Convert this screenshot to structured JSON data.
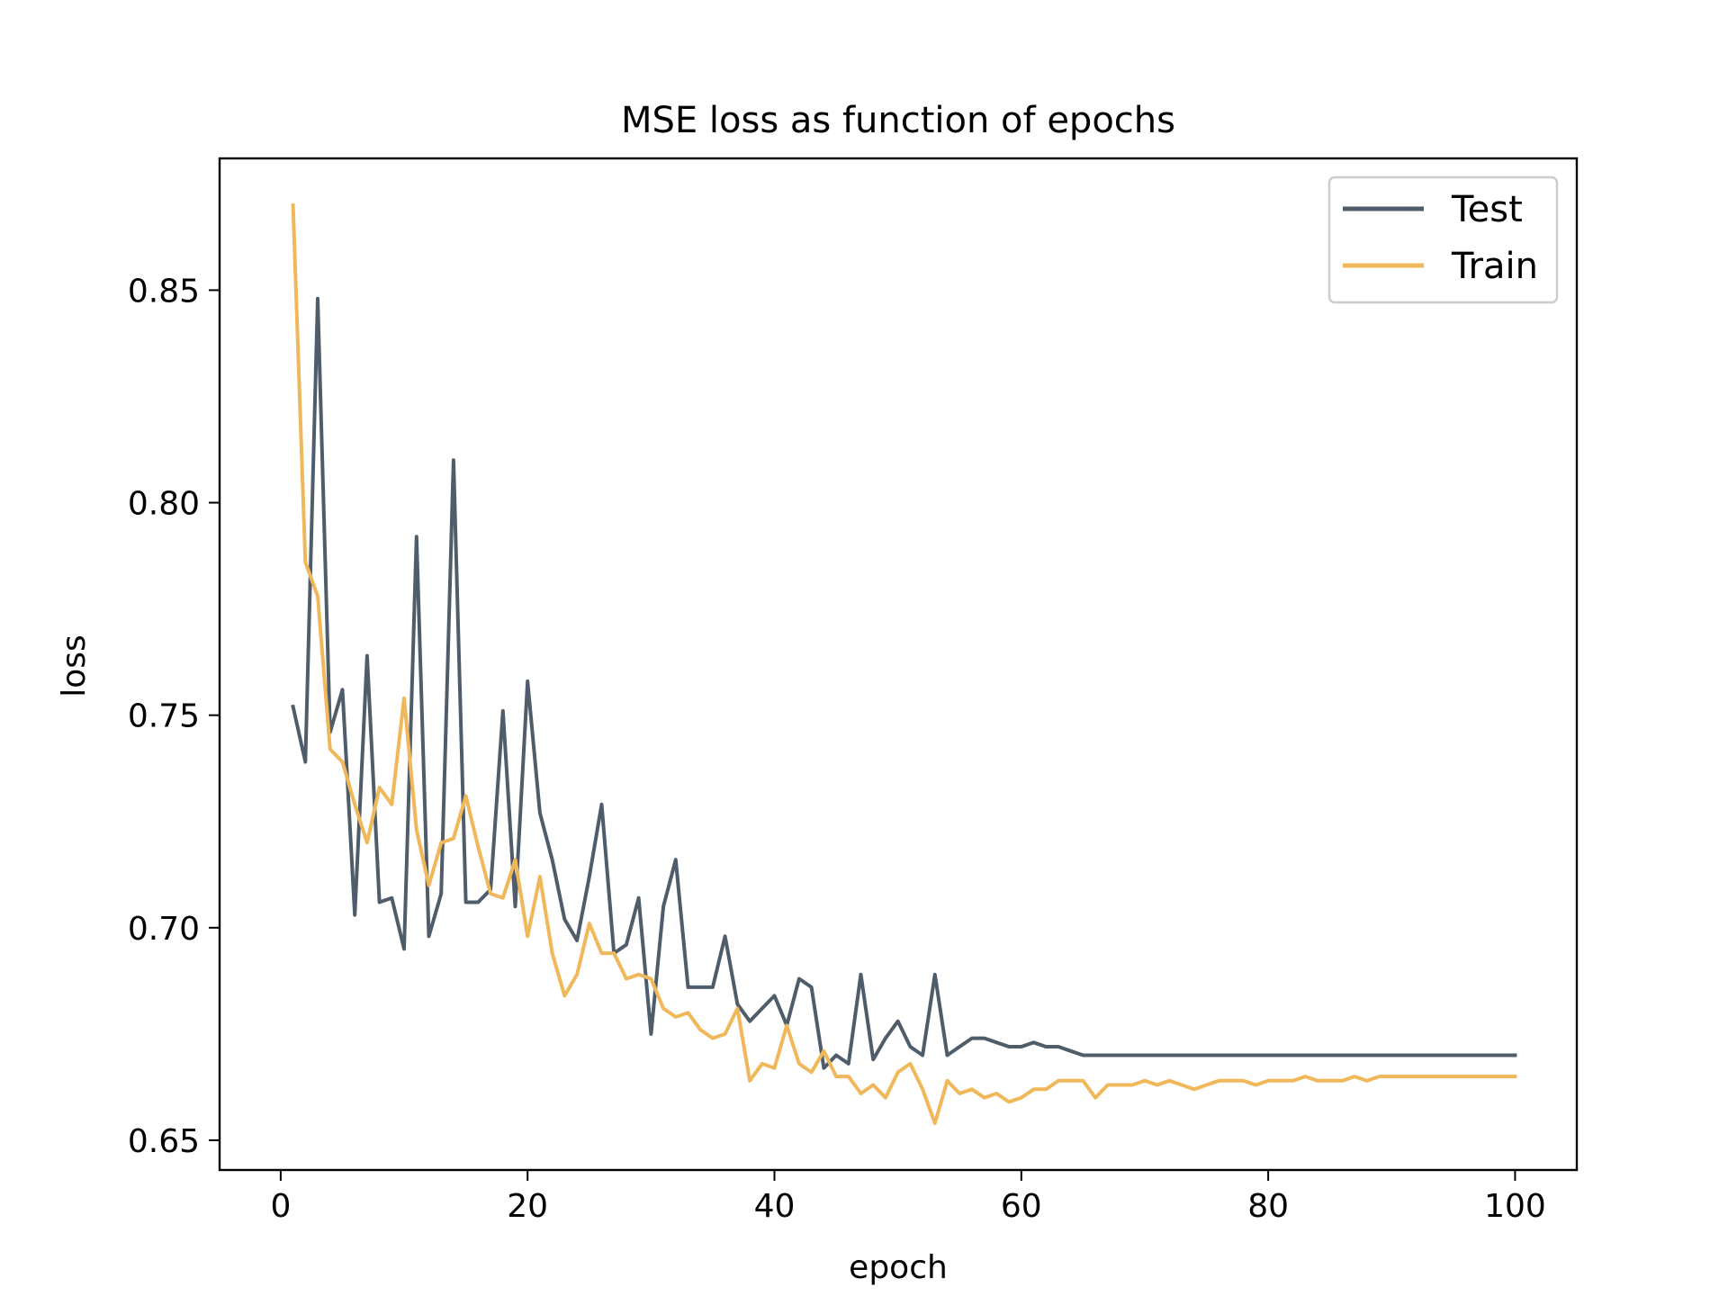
{
  "chart_data": {
    "type": "line",
    "title": "MSE loss as function of epochs",
    "xlabel": "epoch",
    "ylabel": "loss",
    "xlim": [
      -4.95,
      105
    ],
    "ylim": [
      0.643,
      0.881
    ],
    "xticks": [
      0,
      20,
      40,
      60,
      80,
      100
    ],
    "yticks": [
      0.65,
      0.7,
      0.75,
      0.8,
      0.85
    ],
    "xtick_labels": [
      "0",
      "20",
      "40",
      "60",
      "80",
      "100"
    ],
    "ytick_labels": [
      "0.65",
      "0.70",
      "0.75",
      "0.80",
      "0.85"
    ],
    "grid": false,
    "legend_position": "top-right",
    "x": [
      1,
      2,
      3,
      4,
      5,
      6,
      7,
      8,
      9,
      10,
      11,
      12,
      13,
      14,
      15,
      16,
      17,
      18,
      19,
      20,
      21,
      22,
      23,
      24,
      25,
      26,
      27,
      28,
      29,
      30,
      31,
      32,
      33,
      34,
      35,
      36,
      37,
      38,
      39,
      40,
      41,
      42,
      43,
      44,
      45,
      46,
      47,
      48,
      49,
      50,
      51,
      52,
      53,
      54,
      55,
      56,
      57,
      58,
      59,
      60,
      61,
      62,
      63,
      64,
      65,
      66,
      67,
      68,
      69,
      70,
      71,
      72,
      73,
      74,
      75,
      76,
      77,
      78,
      79,
      80,
      81,
      82,
      83,
      84,
      85,
      86,
      87,
      88,
      89,
      90,
      91,
      92,
      93,
      94,
      95,
      96,
      97,
      98,
      99,
      100
    ],
    "series": [
      {
        "name": "Test",
        "color": "#4f5d6b",
        "values": [
          0.752,
          0.739,
          0.848,
          0.746,
          0.756,
          0.703,
          0.764,
          0.706,
          0.707,
          0.695,
          0.792,
          0.698,
          0.708,
          0.81,
          0.706,
          0.706,
          0.709,
          0.751,
          0.705,
          0.758,
          0.727,
          0.716,
          0.702,
          0.697,
          0.712,
          0.729,
          0.694,
          0.696,
          0.707,
          0.675,
          0.705,
          0.716,
          0.686,
          0.686,
          0.686,
          0.698,
          0.682,
          0.678,
          0.681,
          0.684,
          0.677,
          0.688,
          0.686,
          0.667,
          0.67,
          0.668,
          0.689,
          0.669,
          0.674,
          0.678,
          0.672,
          0.67,
          0.689,
          0.67,
          0.672,
          0.674,
          0.674,
          0.673,
          0.672,
          0.672,
          0.673,
          0.672,
          0.672,
          0.671,
          0.67,
          0.67,
          0.67,
          0.67,
          0.67,
          0.67,
          0.67,
          0.67,
          0.67,
          0.67,
          0.67,
          0.67,
          0.67,
          0.67,
          0.67,
          0.67,
          0.67,
          0.67,
          0.67,
          0.67,
          0.67,
          0.67,
          0.67,
          0.67,
          0.67,
          0.67,
          0.67,
          0.67,
          0.67,
          0.67,
          0.67,
          0.67,
          0.67,
          0.67,
          0.67,
          0.67
        ]
      },
      {
        "name": "Train",
        "color": "#f0b85a",
        "values": [
          0.87,
          0.786,
          0.778,
          0.742,
          0.739,
          0.729,
          0.72,
          0.733,
          0.729,
          0.754,
          0.723,
          0.71,
          0.72,
          0.721,
          0.731,
          0.719,
          0.708,
          0.707,
          0.716,
          0.698,
          0.712,
          0.694,
          0.684,
          0.689,
          0.701,
          0.694,
          0.694,
          0.688,
          0.689,
          0.688,
          0.681,
          0.679,
          0.68,
          0.676,
          0.674,
          0.675,
          0.681,
          0.664,
          0.668,
          0.667,
          0.677,
          0.668,
          0.666,
          0.671,
          0.665,
          0.665,
          0.661,
          0.663,
          0.66,
          0.666,
          0.668,
          0.662,
          0.654,
          0.664,
          0.661,
          0.662,
          0.66,
          0.661,
          0.659,
          0.66,
          0.662,
          0.662,
          0.664,
          0.664,
          0.664,
          0.66,
          0.663,
          0.663,
          0.663,
          0.664,
          0.663,
          0.664,
          0.663,
          0.662,
          0.663,
          0.664,
          0.664,
          0.664,
          0.663,
          0.664,
          0.664,
          0.664,
          0.665,
          0.664,
          0.664,
          0.664,
          0.665,
          0.664,
          0.665,
          0.665,
          0.665,
          0.665,
          0.665,
          0.665,
          0.665,
          0.665,
          0.665,
          0.665,
          0.665,
          0.665
        ]
      }
    ]
  }
}
